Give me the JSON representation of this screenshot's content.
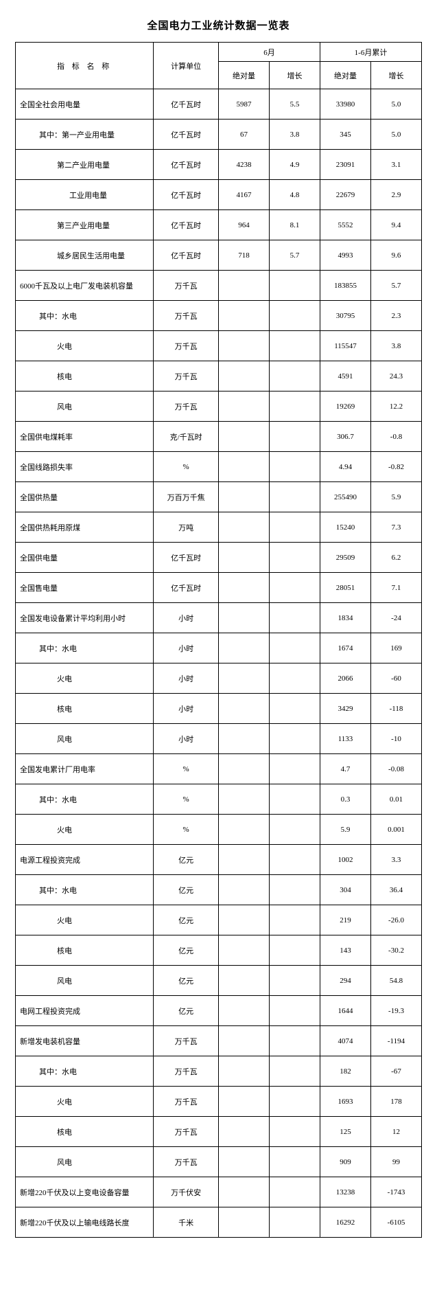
{
  "title": "全国电力工业统计数据一览表",
  "header": {
    "name": "指 标  名 称",
    "unit": "计算单位",
    "jun": "6月",
    "cum": "1-6月累计",
    "abs": "绝对量",
    "growth": "增长"
  },
  "col_widths_pct": [
    34,
    16,
    12.5,
    12.5,
    12.5,
    12.5
  ],
  "rows": [
    {
      "n": "全国全社会用电量",
      "i": 0,
      "u": "亿千瓦时",
      "a": "5987",
      "b": "5.5",
      "c": "33980",
      "d": "5.0"
    },
    {
      "n": "其中：第一产业用电量",
      "i": 1,
      "u": "亿千瓦时",
      "a": "67",
      "b": "3.8",
      "c": "345",
      "d": "5.0"
    },
    {
      "n": "第二产业用电量",
      "i": 2,
      "u": "亿千瓦时",
      "a": "4238",
      "b": "4.9",
      "c": "23091",
      "d": "3.1"
    },
    {
      "n": "工业用电量",
      "i": 3,
      "u": "亿千瓦时",
      "a": "4167",
      "b": "4.8",
      "c": "22679",
      "d": "2.9"
    },
    {
      "n": "第三产业用电量",
      "i": 2,
      "u": "亿千瓦时",
      "a": "964",
      "b": "8.1",
      "c": "5552",
      "d": "9.4"
    },
    {
      "n": "城乡居民生活用电量",
      "i": 2,
      "u": "亿千瓦时",
      "a": "718",
      "b": "5.7",
      "c": "4993",
      "d": "9.6"
    },
    {
      "n": "6000千瓦及以上电厂发电装机容量",
      "i": 0,
      "u": "万千瓦",
      "a": "",
      "b": "",
      "c": "183855",
      "d": "5.7"
    },
    {
      "n": "其中：水电",
      "i": 1,
      "u": "万千瓦",
      "a": "",
      "b": "",
      "c": "30795",
      "d": "2.3"
    },
    {
      "n": "火电",
      "i": 2,
      "u": "万千瓦",
      "a": "",
      "b": "",
      "c": "115547",
      "d": "3.8"
    },
    {
      "n": "核电",
      "i": 2,
      "u": "万千瓦",
      "a": "",
      "b": "",
      "c": "4591",
      "d": "24.3"
    },
    {
      "n": "风电",
      "i": 2,
      "u": "万千瓦",
      "a": "",
      "b": "",
      "c": "19269",
      "d": "12.2"
    },
    {
      "n": "全国供电煤耗率",
      "i": 0,
      "u": "克/千瓦时",
      "a": "",
      "b": "",
      "c": "306.7",
      "d": "-0.8"
    },
    {
      "n": "全国线路损失率",
      "i": 0,
      "u": "%",
      "a": "",
      "b": "",
      "c": "4.94",
      "d": "-0.82"
    },
    {
      "n": "全国供热量",
      "i": 0,
      "u": "万百万千焦",
      "a": "",
      "b": "",
      "c": "255490",
      "d": "5.9"
    },
    {
      "n": "全国供热耗用原煤",
      "i": 0,
      "u": "万吨",
      "a": "",
      "b": "",
      "c": "15240",
      "d": "7.3"
    },
    {
      "n": "全国供电量",
      "i": 0,
      "u": "亿千瓦时",
      "a": "",
      "b": "",
      "c": "29509",
      "d": "6.2"
    },
    {
      "n": "全国售电量",
      "i": 0,
      "u": "亿千瓦时",
      "a": "",
      "b": "",
      "c": "28051",
      "d": "7.1"
    },
    {
      "n": "全国发电设备累计平均利用小时",
      "i": 0,
      "u": "小时",
      "a": "",
      "b": "",
      "c": "1834",
      "d": "-24"
    },
    {
      "n": "其中：水电",
      "i": 1,
      "u": "小时",
      "a": "",
      "b": "",
      "c": "1674",
      "d": "169"
    },
    {
      "n": "火电",
      "i": 2,
      "u": "小时",
      "a": "",
      "b": "",
      "c": "2066",
      "d": "-60"
    },
    {
      "n": "核电",
      "i": 2,
      "u": "小时",
      "a": "",
      "b": "",
      "c": "3429",
      "d": "-118"
    },
    {
      "n": "风电",
      "i": 2,
      "u": "小时",
      "a": "",
      "b": "",
      "c": "1133",
      "d": "-10"
    },
    {
      "n": "全国发电累计厂用电率",
      "i": 0,
      "u": "%",
      "a": "",
      "b": "",
      "c": "4.7",
      "d": "-0.08"
    },
    {
      "n": "其中：水电",
      "i": 1,
      "u": "%",
      "a": "",
      "b": "",
      "c": "0.3",
      "d": "0.01"
    },
    {
      "n": "火电",
      "i": 2,
      "u": "%",
      "a": "",
      "b": "",
      "c": "5.9",
      "d": "0.001"
    },
    {
      "n": "电源工程投资完成",
      "i": 0,
      "u": "亿元",
      "a": "",
      "b": "",
      "c": "1002",
      "d": "3.3"
    },
    {
      "n": "其中：水电",
      "i": 1,
      "u": "亿元",
      "a": "",
      "b": "",
      "c": "304",
      "d": "36.4"
    },
    {
      "n": "火电",
      "i": 2,
      "u": "亿元",
      "a": "",
      "b": "",
      "c": "219",
      "d": "-26.0"
    },
    {
      "n": "核电",
      "i": 2,
      "u": "亿元",
      "a": "",
      "b": "",
      "c": "143",
      "d": "-30.2"
    },
    {
      "n": "风电",
      "i": 2,
      "u": "亿元",
      "a": "",
      "b": "",
      "c": "294",
      "d": "54.8"
    },
    {
      "n": "电网工程投资完成",
      "i": 0,
      "u": "亿元",
      "a": "",
      "b": "",
      "c": "1644",
      "d": "-19.3"
    },
    {
      "n": "新增发电装机容量",
      "i": 0,
      "u": "万千瓦",
      "a": "",
      "b": "",
      "c": "4074",
      "d": "-1194"
    },
    {
      "n": "其中：水电",
      "i": 1,
      "u": "万千瓦",
      "a": "",
      "b": "",
      "c": "182",
      "d": "-67"
    },
    {
      "n": "火电",
      "i": 2,
      "u": "万千瓦",
      "a": "",
      "b": "",
      "c": "1693",
      "d": "178"
    },
    {
      "n": "核电",
      "i": 2,
      "u": "万千瓦",
      "a": "",
      "b": "",
      "c": "125",
      "d": "12"
    },
    {
      "n": "风电",
      "i": 2,
      "u": "万千瓦",
      "a": "",
      "b": "",
      "c": "909",
      "d": "99"
    },
    {
      "n": "新增220千伏及以上变电设备容量",
      "i": 0,
      "u": "万千伏安",
      "a": "",
      "b": "",
      "c": "13238",
      "d": "-1743"
    },
    {
      "n": "新增220千伏及以上输电线路长度",
      "i": 0,
      "u": "千米",
      "a": "",
      "b": "",
      "c": "16292",
      "d": "-6105"
    }
  ]
}
